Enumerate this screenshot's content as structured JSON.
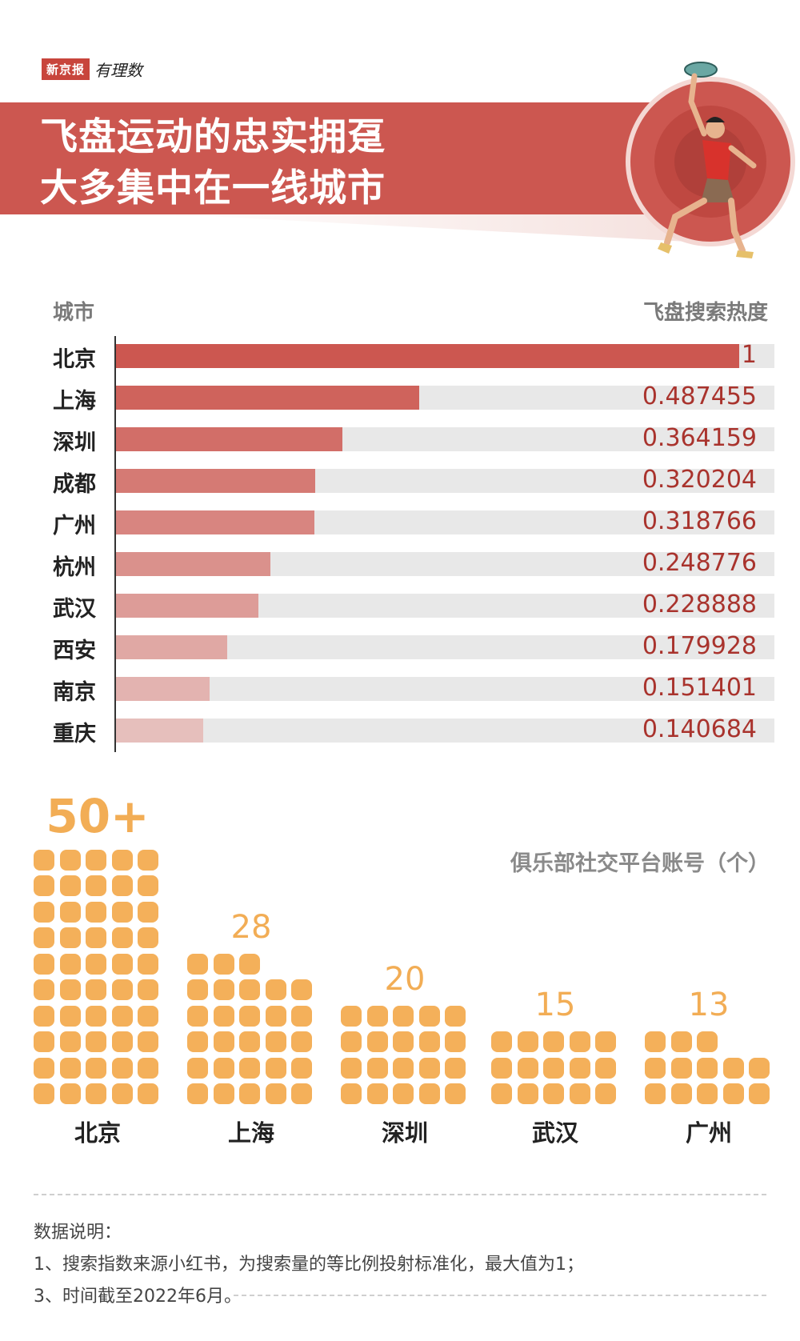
{
  "brand": {
    "name": "新京报",
    "column": "有理数"
  },
  "title": {
    "line1": "飞盘运动的忠实拥趸",
    "line2": "大多集中在一线城市"
  },
  "colors": {
    "banner": "#cc5750",
    "bar_max": "#cc5750",
    "bar_min": "#e6bfbc",
    "track": "#e8e8e8",
    "dot": "#f4b05a",
    "value_text": "#a9332d"
  },
  "chart_data": [
    {
      "type": "bar",
      "orientation": "horizontal",
      "xlabel": "城市",
      "ylabel": "飞盘搜索热度",
      "xlim": [
        0,
        1
      ],
      "categories": [
        "北京",
        "上海",
        "深圳",
        "成都",
        "广州",
        "杭州",
        "武汉",
        "西安",
        "南京",
        "重庆"
      ],
      "values": [
        1,
        0.487455,
        0.364159,
        0.320204,
        0.318766,
        0.248776,
        0.228888,
        0.179928,
        0.151401,
        0.140684
      ],
      "labels": [
        "1",
        "0.487455",
        "0.364159",
        "0.320204",
        "0.318766",
        "0.248776",
        "0.228888",
        "0.179928",
        "0.151401",
        "0.140684"
      ]
    },
    {
      "type": "pictogram",
      "title": "俱乐部社交平台账号（个）",
      "categories": [
        "北京",
        "上海",
        "深圳",
        "武汉",
        "广州"
      ],
      "values": [
        50,
        28,
        20,
        15,
        13
      ],
      "labels": [
        "50+",
        "28",
        "20",
        "15",
        "13"
      ]
    }
  ],
  "notes": {
    "heading": "数据说明：",
    "item1": "1、搜索指数来源小红书，为搜索量的等比例投射标准化，最大值为1；",
    "item2": "3、时间截至2022年6月。"
  }
}
